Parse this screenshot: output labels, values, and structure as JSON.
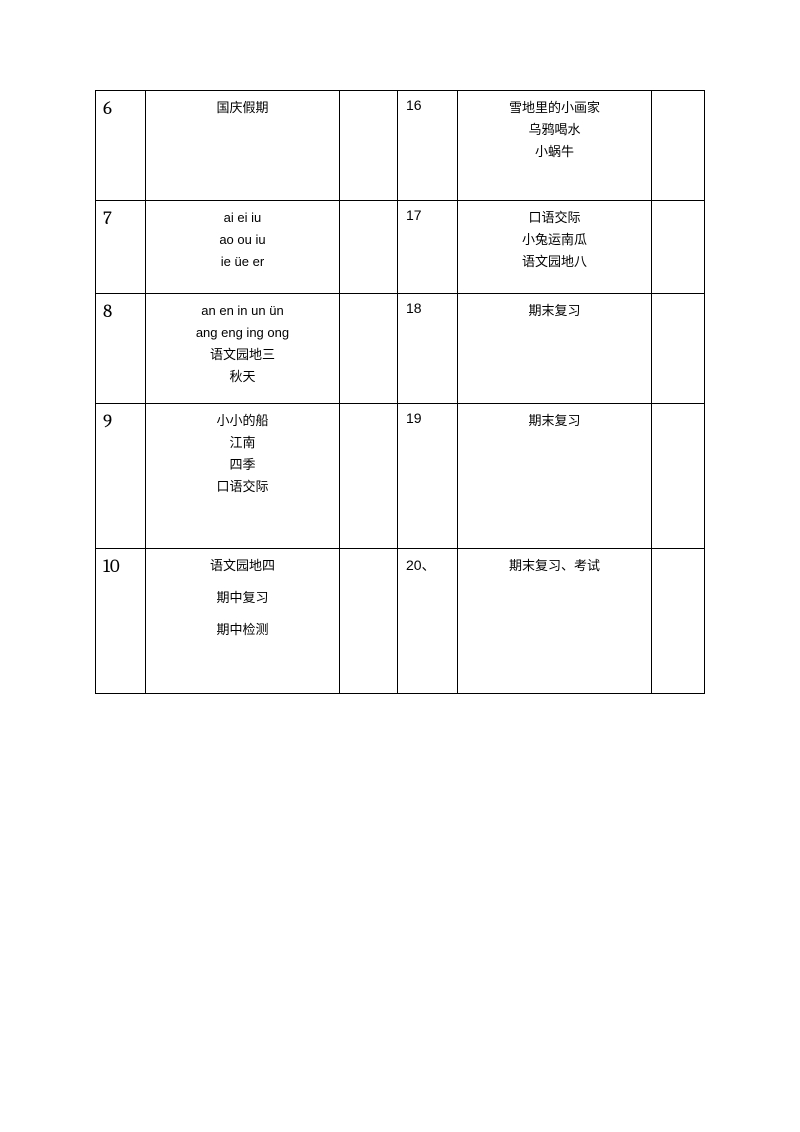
{
  "rows": [
    {
      "leftNum": "6",
      "leftLines": [
        "国庆假期"
      ],
      "rightNum": "16",
      "rightLines": [
        "雪地里的小画家",
        "乌鸦喝水",
        "小蜗牛"
      ]
    },
    {
      "leftNum": "7",
      "leftLines": [
        "ai  ei iu",
        "ao ou iu",
        "ie üe er"
      ],
      "rightNum": "17",
      "rightLines": [
        "口语交际",
        "小兔运南瓜",
        "语文园地八"
      ]
    },
    {
      "leftNum": "8",
      "leftLines": [
        "an en in un ün",
        "ang eng ing ong",
        "语文园地三",
        "秋天"
      ],
      "rightNum": "18",
      "rightLines": [
        "期末复习"
      ]
    },
    {
      "leftNum": "9",
      "leftLines": [
        "小小的船",
        "江南",
        "四季",
        "口语交际"
      ],
      "rightNum": "19",
      "rightLines": [
        "期末复习"
      ]
    },
    {
      "leftNum": "10",
      "leftLines": [
        "语文园地四",
        "期中复习",
        "期中检测"
      ],
      "leftSpaced": true,
      "rightNum": "20、",
      "rightLines": [
        "期末复习、考试"
      ]
    }
  ]
}
